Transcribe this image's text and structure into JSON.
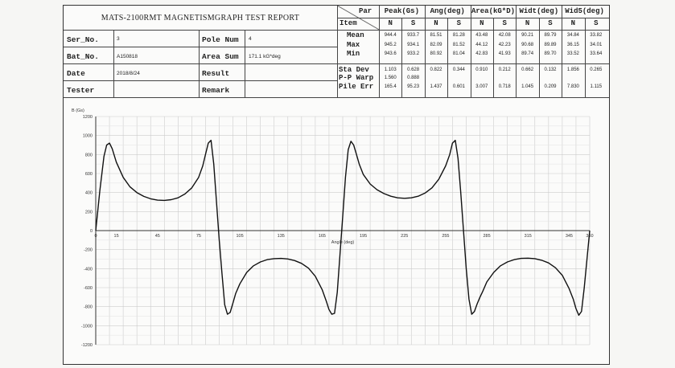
{
  "report": {
    "title": "MATS-2100RMT MAGNETISMGRAPH TEST REPORT",
    "fields": [
      {
        "label": "Ser_No.",
        "value": "3"
      },
      {
        "label": "Bat_No.",
        "value": "A150818"
      },
      {
        "label": "Date",
        "value": "2018/8/24"
      },
      {
        "label": "Tester",
        "value": ""
      }
    ],
    "fields2": [
      {
        "label": "Pole Num",
        "value": "4"
      },
      {
        "label": "Area Sum",
        "value": "171.1 kG*deg"
      },
      {
        "label": "Result",
        "value": ""
      },
      {
        "label": "Remark",
        "value": ""
      }
    ]
  },
  "stats": {
    "par_label": "Par",
    "item_label": "Item",
    "groups": [
      "Peak(Gs)",
      "Ang(deg)",
      "Area(kG*D)",
      "Widt(deg)",
      "Wid5(deg)"
    ],
    "subheaders": [
      "N",
      "S",
      "N",
      "S",
      "N",
      "S",
      "N",
      "S",
      "N",
      "S"
    ],
    "rows": [
      {
        "label": "Mean",
        "values": [
          "944.4",
          "933.7",
          "81.51",
          "81.28",
          "43.48",
          "42.08",
          "90.21",
          "89.79",
          "34.84",
          "33.82"
        ]
      },
      {
        "label": "Max",
        "values": [
          "945.2",
          "934.1",
          "82.09",
          "81.52",
          "44.12",
          "42.23",
          "90.68",
          "89.89",
          "36.15",
          "34.01"
        ]
      },
      {
        "label": "Min",
        "values": [
          "943.6",
          "933.2",
          "80.92",
          "81.04",
          "42.83",
          "41.93",
          "89.74",
          "89.70",
          "33.52",
          "33.64"
        ]
      },
      {
        "label": "Sta Dev",
        "values": [
          "1.103",
          "0.628",
          "0.822",
          "0.344",
          "0.910",
          "0.212",
          "0.662",
          "0.132",
          "1.856",
          "0.265"
        ]
      },
      {
        "label": "P-P Warp",
        "values": [
          "1.560",
          "0.888",
          "",
          "",
          "",
          "",
          "",
          "",
          "",
          ""
        ]
      },
      {
        "label": "Pile Err",
        "values": [
          "165.4",
          "95.23",
          "1.437",
          "0.601",
          "3.007",
          "0.718",
          "1.045",
          "0.209",
          "7.830",
          "1.115"
        ]
      }
    ]
  },
  "chart_data": {
    "type": "line",
    "ylabel": "B (Gs)",
    "xlabel": "Angle (deg)",
    "xlim": [
      0,
      360
    ],
    "ylim": [
      -1200,
      1200
    ],
    "xticks": [
      0,
      15,
      45,
      75,
      105,
      135,
      165,
      195,
      225,
      255,
      285,
      315,
      345,
      360
    ],
    "xtick_labels": [
      "0",
      "15",
      "45",
      "75",
      "105",
      "135",
      "165",
      "195",
      "225",
      "255",
      "285",
      "315",
      "345",
      "360"
    ],
    "yticks": [
      1200,
      1000,
      800,
      600,
      400,
      200,
      0,
      -200,
      -400,
      -600,
      -800,
      -1000,
      -1200
    ],
    "grid": true,
    "series": [
      {
        "values_desc": "",
        "x": [
          0,
          3,
          6,
          8,
          10,
          12,
          15,
          20,
          25,
          30,
          35,
          40,
          45,
          50,
          55,
          60,
          65,
          70,
          75,
          78,
          80,
          82,
          84,
          86,
          88,
          90,
          92,
          94,
          96,
          98,
          100,
          102,
          105,
          110,
          115,
          120,
          125,
          130,
          135,
          140,
          145,
          150,
          155,
          160,
          165,
          168,
          170,
          172,
          174,
          176,
          178,
          180,
          182,
          184,
          186,
          188,
          190,
          192,
          195,
          200,
          205,
          210,
          215,
          220,
          225,
          230,
          235,
          240,
          245,
          250,
          255,
          258,
          260,
          262,
          264,
          266,
          268,
          270,
          272,
          274,
          276,
          278,
          280,
          282,
          285,
          290,
          295,
          300,
          305,
          310,
          315,
          320,
          325,
          330,
          335,
          340,
          345,
          348,
          350,
          352,
          354,
          356,
          358,
          360
        ],
        "y": [
          0,
          420,
          780,
          900,
          920,
          860,
          720,
          560,
          460,
          400,
          360,
          335,
          320,
          318,
          325,
          345,
          385,
          450,
          560,
          680,
          800,
          920,
          950,
          700,
          300,
          -100,
          -450,
          -780,
          -880,
          -860,
          -760,
          -660,
          -560,
          -440,
          -370,
          -330,
          -305,
          -295,
          -292,
          -298,
          -315,
          -345,
          -395,
          -480,
          -620,
          -740,
          -830,
          -880,
          -870,
          -650,
          -250,
          150,
          560,
          850,
          940,
          900,
          800,
          700,
          590,
          490,
          430,
          390,
          362,
          345,
          340,
          345,
          362,
          395,
          450,
          540,
          680,
          800,
          920,
          950,
          760,
          400,
          0,
          -400,
          -720,
          -880,
          -850,
          -770,
          -700,
          -640,
          -540,
          -440,
          -370,
          -330,
          -305,
          -292,
          -290,
          -295,
          -312,
          -340,
          -390,
          -470,
          -610,
          -720,
          -820,
          -890,
          -850,
          -600,
          -300,
          0
        ]
      }
    ]
  }
}
